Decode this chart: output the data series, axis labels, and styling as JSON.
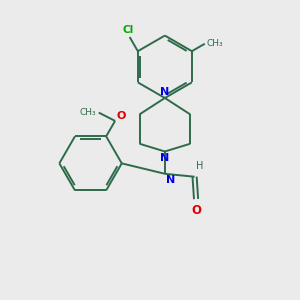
{
  "bg_color": "#ebebeb",
  "bond_color": "#2d6b4a",
  "N_color": "#0000ee",
  "O_color": "#dd0000",
  "Cl_color": "#00aa00",
  "line_width": 1.4,
  "figsize": [
    3.0,
    3.0
  ],
  "dpi": 100,
  "xlim": [
    0,
    10
  ],
  "ylim": [
    0,
    10
  ]
}
